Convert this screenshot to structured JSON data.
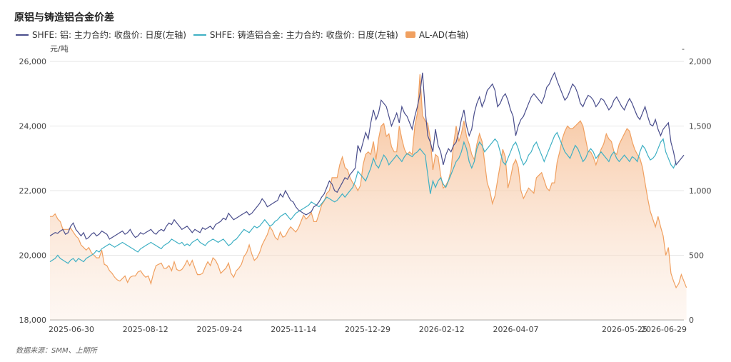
{
  "title": "原铝与铸造铝合金价差",
  "source": "数据来源：SMM、上期所",
  "colors": {
    "al": "#4a4e8c",
    "ad": "#3fb0c4",
    "spread_line": "#f0a060",
    "spread_fill": "#f7c9a0",
    "grid": "#e6e6e6",
    "axis": "#999999"
  },
  "chart_data": {
    "type": "line",
    "title": "原铝与铸造铝合金价差",
    "left_unit": "元/吨",
    "right_unit": "-",
    "ylim_left": [
      18000,
      26000
    ],
    "ylim_right": [
      0,
      2000
    ],
    "yticks_left": [
      "18,000",
      "20,000",
      "22,000",
      "24,000",
      "26,000"
    ],
    "yticks_right": [
      "0",
      "500",
      "1,000",
      "1,500",
      "2,000"
    ],
    "xticks": [
      "2025-06-30",
      "2025-08-12",
      "2025-09-24",
      "2025-11-14",
      "2025-12-29",
      "2026-02-12",
      "2026-04-07",
      "2026-05-25",
      "2026-06-29"
    ],
    "legend_position": "top-left",
    "grid": true,
    "series": [
      {
        "name": "SHFE: 铝: 主力合约: 收盘价: 日度(左轴)",
        "axis": "left",
        "values": [
          20600,
          20650,
          20700,
          20680,
          20750,
          20800,
          20650,
          20700,
          20900,
          21000,
          20800,
          20700,
          20600,
          20700,
          20500,
          20550,
          20650,
          20700,
          20600,
          20650,
          20750,
          20700,
          20650,
          20500,
          20550,
          20600,
          20650,
          20700,
          20750,
          20650,
          20700,
          20800,
          20650,
          20550,
          20600,
          20700,
          20650,
          20700,
          20750,
          20800,
          20700,
          20650,
          20750,
          20800,
          20750,
          20900,
          21000,
          20950,
          21100,
          21000,
          20900,
          20800,
          20850,
          20900,
          20800,
          20700,
          20800,
          20750,
          20700,
          20850,
          20800,
          20850,
          20900,
          20800,
          20950,
          21000,
          21050,
          21150,
          21100,
          21300,
          21200,
          21100,
          21150,
          21200,
          21250,
          21300,
          21350,
          21250,
          21300,
          21400,
          21500,
          21600,
          21750,
          21650,
          21500,
          21550,
          21600,
          21650,
          21700,
          21900,
          21800,
          22000,
          21850,
          21700,
          21650,
          21500,
          21400,
          21350,
          21300,
          21250,
          21300,
          21350,
          21500,
          21550,
          21650,
          21800,
          21900,
          22100,
          22300,
          22200,
          22000,
          21950,
          22100,
          22250,
          22400,
          22350,
          22500,
          22600,
          22700,
          23400,
          23200,
          23500,
          23800,
          23600,
          24100,
          24500,
          24200,
          24400,
          24800,
          24700,
          24600,
          24300,
          24000,
          24200,
          24400,
          24100,
          24600,
          24400,
          24300,
          24100,
          23900,
          24300,
          24600,
          25000,
          25650,
          24500,
          23700,
          23500,
          23200,
          23900,
          23400,
          23200,
          22800,
          23100,
          23300,
          23200,
          23400,
          23500,
          23800,
          24200,
          24500,
          24000,
          23700,
          23900,
          24400,
          24700,
          24900,
          24600,
          24800,
          25100,
          25200,
          25300,
          25100,
          24600,
          24700,
          24900,
          25000,
          24800,
          24500,
          24300,
          23700,
          24000,
          24200,
          24300,
          24500,
          24700,
          24900,
          25000,
          24900,
          24800,
          24700,
          24900,
          25200,
          25300,
          25500,
          25650,
          25400,
          25200,
          25000,
          24800,
          24900,
          25100,
          25300,
          25200,
          25000,
          24700,
          24600,
          24800,
          24950,
          24900,
          24800,
          24600,
          24700,
          24850,
          24800,
          24650,
          24500,
          24600,
          24800,
          24900,
          24750,
          24600,
          24500,
          24700,
          24850,
          24700,
          24500,
          24300,
          24200,
          24400,
          24600,
          24300,
          24050,
          24000,
          24200,
          23900,
          23700,
          23900,
          24000,
          24100,
          23500,
          23200,
          22800,
          22900,
          23000,
          23100
        ]
      },
      {
        "name": "SHFE: 铸造铝合金: 主力合约: 收盘价: 日度(左轴)",
        "axis": "left",
        "values": [
          19800,
          19850,
          19900,
          20000,
          19900,
          19850,
          19800,
          19750,
          19850,
          19900,
          19800,
          19900,
          19850,
          19800,
          19900,
          19950,
          20000,
          20050,
          20150,
          20100,
          20200,
          20250,
          20300,
          20350,
          20300,
          20250,
          20300,
          20350,
          20400,
          20350,
          20300,
          20250,
          20200,
          20150,
          20100,
          20200,
          20250,
          20300,
          20350,
          20400,
          20350,
          20300,
          20250,
          20200,
          20300,
          20350,
          20400,
          20500,
          20450,
          20400,
          20350,
          20400,
          20300,
          20350,
          20300,
          20400,
          20450,
          20500,
          20400,
          20350,
          20300,
          20400,
          20450,
          20500,
          20450,
          20400,
          20450,
          20500,
          20400,
          20300,
          20350,
          20450,
          20500,
          20600,
          20700,
          20800,
          20750,
          20700,
          20800,
          20900,
          20850,
          20900,
          21000,
          21100,
          21000,
          20900,
          20950,
          21050,
          21100,
          21200,
          21250,
          21300,
          21200,
          21100,
          21200,
          21300,
          21350,
          21400,
          21450,
          21500,
          21550,
          21650,
          21600,
          21550,
          21500,
          21600,
          21700,
          21800,
          21750,
          21700,
          21650,
          21700,
          21800,
          21900,
          21800,
          21900,
          22000,
          22100,
          22300,
          22600,
          22500,
          22400,
          22300,
          22500,
          22700,
          23000,
          22800,
          22700,
          22900,
          23100,
          23000,
          22800,
          22900,
          23000,
          23100,
          23000,
          22900,
          23050,
          23150,
          23100,
          23050,
          23150,
          23200,
          23300,
          23200,
          23100,
          22500,
          21900,
          22300,
          22100,
          22300,
          22400,
          22200,
          22100,
          22300,
          22500,
          22700,
          22900,
          23000,
          23200,
          23500,
          23300,
          22900,
          22700,
          22900,
          23300,
          23500,
          23400,
          23200,
          23300,
          23400,
          23500,
          23600,
          23500,
          23200,
          22900,
          22800,
          23000,
          23200,
          23400,
          23500,
          23300,
          23000,
          22800,
          22900,
          23100,
          23200,
          23400,
          23500,
          23300,
          23100,
          22900,
          23100,
          23300,
          23500,
          23700,
          23800,
          23600,
          23400,
          23200,
          23100,
          23000,
          23200,
          23400,
          23300,
          23100,
          22900,
          23000,
          23200,
          23300,
          23200,
          23000,
          23100,
          23200,
          23100,
          23000,
          22900,
          23100,
          23200,
          23000,
          22900,
          23000,
          23100,
          23000,
          22900,
          23050,
          23000,
          22900,
          23200,
          23400,
          23300,
          23100,
          22950,
          23000,
          23100,
          23300,
          23500,
          23600,
          23200,
          23000,
          22800,
          22700,
          22900
        ]
      },
      {
        "name": "AL-AD(右轴)",
        "axis": "right",
        "values": [
          800,
          800,
          820,
          780,
          760,
          700,
          700,
          700,
          710,
          680,
          650,
          630,
          580,
          560,
          540,
          560,
          520,
          500,
          480,
          480,
          540,
          430,
          420,
          380,
          360,
          330,
          310,
          300,
          320,
          340,
          290,
          330,
          340,
          340,
          370,
          380,
          350,
          330,
          340,
          280,
          360,
          420,
          430,
          440,
          400,
          400,
          420,
          380,
          450,
          390,
          380,
          390,
          420,
          460,
          420,
          460,
          400,
          350,
          350,
          360,
          410,
          450,
          420,
          480,
          460,
          420,
          360,
          380,
          400,
          440,
          360,
          330,
          380,
          400,
          430,
          490,
          520,
          580,
          510,
          460,
          480,
          520,
          580,
          620,
          660,
          720,
          690,
          640,
          620,
          680,
          640,
          650,
          690,
          720,
          700,
          680,
          710,
          760,
          810,
          780,
          800,
          830,
          760,
          760,
          820,
          890,
          920,
          980,
          1000,
          1100,
          1100,
          1100,
          1200,
          1260,
          1180,
          1160,
          1100,
          1060,
          1040,
          1000,
          1040,
          1200,
          1280,
          1300,
          1280,
          1380,
          1240,
          1400,
          1500,
          1520,
          1420,
          1440,
          1340,
          1300,
          1300,
          1500,
          1400,
          1320,
          1280,
          1300,
          1280,
          1500,
          1600,
          1900,
          1580,
          1540,
          1520,
          1400,
          1160,
          1280,
          1260,
          1120,
          1020,
          1040,
          1080,
          1160,
          1360,
          1500,
          1380,
          1440,
          1540,
          1420,
          1360,
          1280,
          1240,
          1360,
          1440,
          1380,
          1220,
          1060,
          1000,
          900,
          960,
          1080,
          1200,
          1320,
          1260,
          1020,
          1100,
          1200,
          1240,
          1180,
          1000,
          940,
          980,
          1020,
          1000,
          980,
          1100,
          1120,
          1140,
          1080,
          1020,
          1000,
          1060,
          1060,
          1220,
          1300,
          1400,
          1460,
          1500,
          1480,
          1480,
          1500,
          1520,
          1540,
          1500,
          1400,
          1300,
          1300,
          1260,
          1200,
          1260,
          1320,
          1360,
          1440,
          1400,
          1380,
          1300,
          1280,
          1360,
          1400,
          1440,
          1480,
          1460,
          1380,
          1320,
          1280,
          1250,
          1180,
          1060,
          940,
          840,
          780,
          720,
          800,
          720,
          650,
          500,
          560,
          360,
          300,
          250,
          280,
          350,
          300,
          250
        ]
      }
    ]
  }
}
